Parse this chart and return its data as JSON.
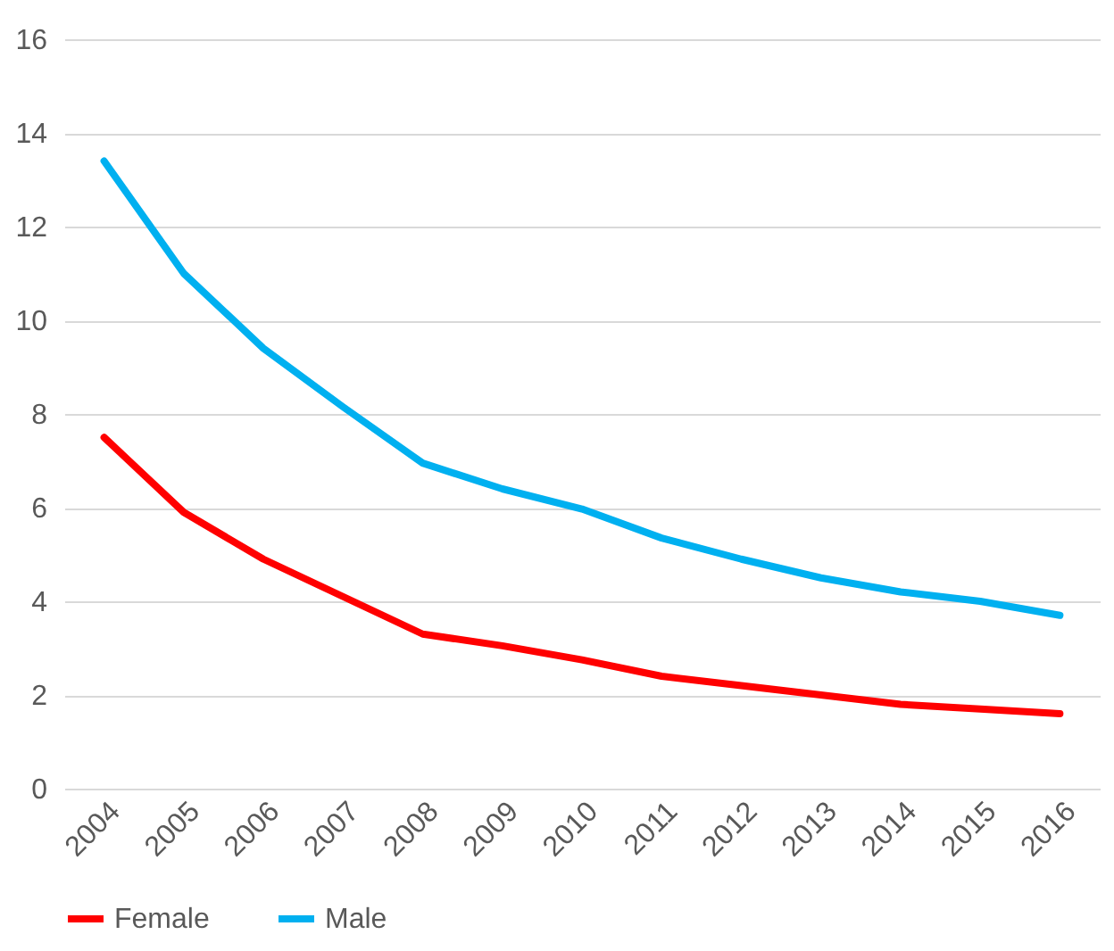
{
  "chart_data": {
    "type": "line",
    "categories": [
      "2004",
      "2005",
      "2006",
      "2007",
      "2008",
      "2009",
      "2010",
      "2011",
      "2012",
      "2013",
      "2014",
      "2015",
      "2016"
    ],
    "series": [
      {
        "name": "Female",
        "color": "#ff0000",
        "values": [
          7.5,
          5.9,
          4.9,
          4.1,
          3.3,
          3.05,
          2.75,
          2.4,
          2.2,
          2.0,
          1.8,
          1.7,
          1.6
        ]
      },
      {
        "name": "Male",
        "color": "#00b0f0",
        "values": [
          13.4,
          11.0,
          9.4,
          8.15,
          6.95,
          6.4,
          5.97,
          5.35,
          4.9,
          4.5,
          4.2,
          4.0,
          3.7
        ]
      }
    ],
    "ylim": [
      0,
      16
    ],
    "yticks": [
      0,
      2,
      4,
      6,
      8,
      10,
      12,
      14,
      16
    ],
    "grid": "y",
    "legend": "bottom",
    "marker": "none",
    "line_style": "solid"
  }
}
